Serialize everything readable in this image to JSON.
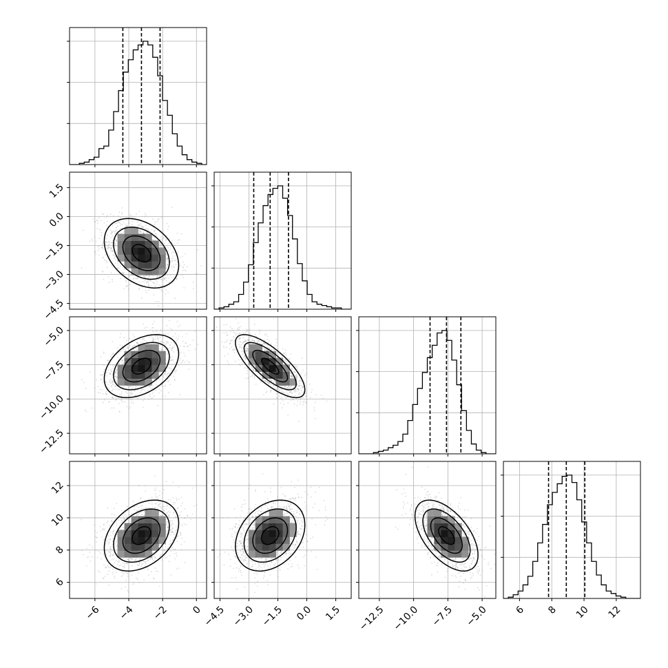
{
  "chart_data": {
    "type": "corner",
    "parameters": [
      {
        "range": [
          -7.5,
          0.6
        ],
        "ticks": [
          -6,
          -4,
          -2,
          0
        ],
        "tick_labels": [
          "−6",
          "−4",
          "−2",
          "0"
        ],
        "quantiles": [
          -4.35,
          -3.25,
          -2.15
        ]
      },
      {
        "range": [
          -4.8,
          2.3
        ],
        "ticks": [
          -4.5,
          -3.0,
          -1.5,
          0.0,
          1.5
        ],
        "tick_labels": [
          "−4.5",
          "−3.0",
          "−1.5",
          "0.0",
          "1.5"
        ],
        "quantiles": [
          -2.75,
          -1.9,
          -0.95
        ]
      },
      {
        "range": [
          -14.0,
          -4.0
        ],
        "ticks": [
          -12.5,
          -10.0,
          -7.5,
          -5.0
        ],
        "tick_labels": [
          "−12.5",
          "−10.0",
          "−7.5",
          "−5.0"
        ],
        "quantiles": [
          -8.8,
          -7.6,
          -6.55
        ]
      },
      {
        "range": [
          5.0,
          13.5
        ],
        "ticks": [
          6,
          8,
          10,
          12
        ],
        "tick_labels": [
          "6",
          "8",
          "10",
          "12"
        ],
        "quantiles": [
          7.8,
          8.9,
          10.05
        ]
      }
    ],
    "histograms": [
      [
        0.0,
        0.0,
        0.01,
        0.02,
        0.04,
        0.06,
        0.13,
        0.15,
        0.28,
        0.43,
        0.6,
        0.75,
        0.85,
        0.93,
        0.97,
        1.0,
        0.97,
        0.87,
        0.72,
        0.52,
        0.4,
        0.25,
        0.15,
        0.08,
        0.04,
        0.02,
        0.01,
        0.0
      ],
      [
        0.0,
        0.01,
        0.02,
        0.04,
        0.06,
        0.12,
        0.22,
        0.36,
        0.54,
        0.7,
        0.84,
        0.93,
        0.98,
        1.0,
        0.9,
        0.76,
        0.57,
        0.37,
        0.23,
        0.12,
        0.06,
        0.04,
        0.03,
        0.02,
        0.01,
        0.01,
        0.0,
        0.0
      ],
      [
        0.0,
        0.0,
        0.0,
        0.01,
        0.02,
        0.03,
        0.05,
        0.07,
        0.1,
        0.16,
        0.27,
        0.4,
        0.53,
        0.66,
        0.78,
        0.88,
        0.98,
        1.0,
        0.92,
        0.76,
        0.56,
        0.35,
        0.19,
        0.08,
        0.03,
        0.01,
        0.0,
        0.0
      ],
      [
        0.0,
        0.01,
        0.03,
        0.06,
        0.11,
        0.18,
        0.3,
        0.45,
        0.6,
        0.76,
        0.86,
        0.93,
        0.99,
        1.0,
        0.94,
        0.8,
        0.62,
        0.45,
        0.3,
        0.19,
        0.11,
        0.06,
        0.04,
        0.02,
        0.01,
        0.0,
        0.0,
        0.0
      ]
    ],
    "pairs": [
      {
        "x": 0,
        "y": 1,
        "mean": [
          -3.25,
          -1.9
        ],
        "sd": [
          1.1,
          0.9
        ],
        "rho": -0.35
      },
      {
        "x": 0,
        "y": 2,
        "mean": [
          -3.25,
          -7.6
        ],
        "sd": [
          1.1,
          1.15
        ],
        "rho": 0.4
      },
      {
        "x": 1,
        "y": 2,
        "mean": [
          -1.9,
          -7.6
        ],
        "sd": [
          0.9,
          1.15
        ],
        "rho": -0.75
      },
      {
        "x": 0,
        "y": 3,
        "mean": [
          -3.25,
          8.9
        ],
        "sd": [
          1.1,
          1.1
        ],
        "rho": 0.35
      },
      {
        "x": 1,
        "y": 3,
        "mean": [
          -1.9,
          8.9
        ],
        "sd": [
          0.9,
          1.1
        ],
        "rho": 0.3
      },
      {
        "x": 2,
        "y": 3,
        "mean": [
          -7.6,
          8.9
        ],
        "sd": [
          1.15,
          1.1
        ],
        "rho": -0.55
      }
    ],
    "contour_levels": [
      0.5,
      1.0,
      1.5,
      2.0
    ],
    "grid": true
  }
}
